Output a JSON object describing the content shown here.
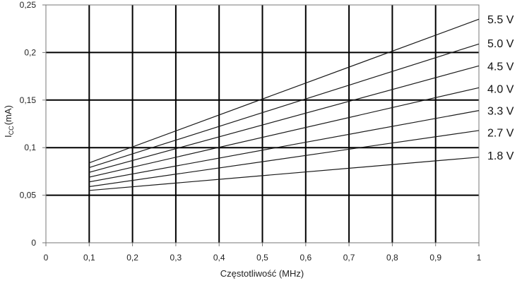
{
  "chart_data": {
    "type": "line",
    "title": "",
    "xlabel": "Częstotliwość (MHz)",
    "ylabel_main": "I",
    "ylabel_sub": "CC",
    "ylabel_unit": "(mA)",
    "xlim": [
      0,
      1
    ],
    "ylim": [
      0,
      0.25
    ],
    "x_ticks": [
      0,
      0.1,
      0.2,
      0.3,
      0.4,
      0.5,
      0.6,
      0.7,
      0.8,
      0.9,
      1
    ],
    "x_tick_labels": [
      "0",
      "0,1",
      "0,2",
      "0,3",
      "0,4",
      "0,5",
      "0,6",
      "0,7",
      "0,8",
      "0,9",
      "1"
    ],
    "y_ticks": [
      0,
      0.05,
      0.1,
      0.15,
      0.2,
      0.25
    ],
    "y_tick_labels": [
      "0",
      "0,05",
      "0,1",
      "0,15",
      "0,2",
      "0,25"
    ],
    "grid": true,
    "legend": "right, labels at line ends",
    "colors": {
      "line": "#1a1a1a",
      "grid": "#000000",
      "frame": "#777777"
    },
    "x": [
      0.1,
      1.0
    ],
    "series": [
      {
        "name": "5.5 V",
        "values": [
          0.084,
          0.235
        ]
      },
      {
        "name": "5.0 V",
        "values": [
          0.079,
          0.209
        ]
      },
      {
        "name": "4.5 V",
        "values": [
          0.074,
          0.186
        ]
      },
      {
        "name": "4.0 V",
        "values": [
          0.069,
          0.163
        ]
      },
      {
        "name": "3.3 V",
        "values": [
          0.064,
          0.139
        ]
      },
      {
        "name": "2.7 V",
        "values": [
          0.059,
          0.118
        ]
      },
      {
        "name": "1.8 V",
        "values": [
          0.055,
          0.09
        ]
      }
    ],
    "label_y": [
      0.235,
      0.21,
      0.186,
      0.162,
      0.139,
      0.116,
      0.092
    ]
  }
}
